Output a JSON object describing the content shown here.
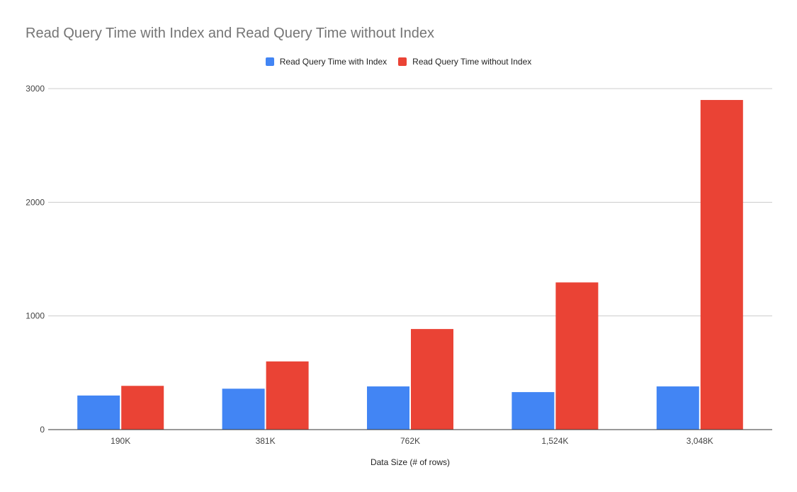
{
  "chart_data": {
    "type": "bar",
    "title": "Read Query Time with Index and Read Query Time without Index",
    "xlabel": "Data Size (# of rows)",
    "ylabel": "",
    "categories": [
      "190K",
      "381K",
      "762K",
      "1,524K",
      "3,048K"
    ],
    "series": [
      {
        "name": "Read Query Time with Index",
        "color": "#4285F4",
        "values": [
          300,
          360,
          380,
          330,
          380
        ]
      },
      {
        "name": "Read Query Time without Index",
        "color": "#EA4335",
        "values": [
          385,
          600,
          885,
          1295,
          2900
        ]
      }
    ],
    "ylim": [
      0,
      3000
    ],
    "yticks": [
      "0",
      "1000",
      "2000",
      "3000"
    ],
    "grid": true,
    "legend_position": "top"
  }
}
